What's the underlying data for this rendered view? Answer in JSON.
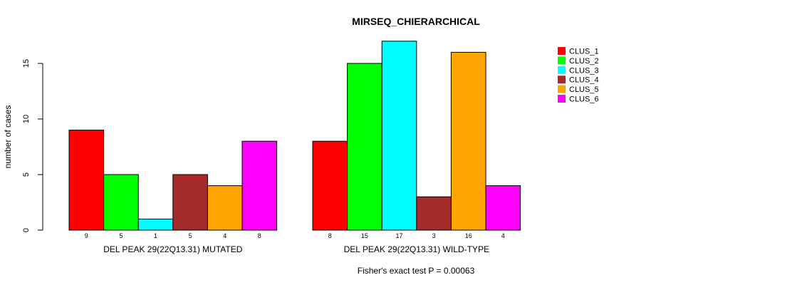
{
  "chart_data": {
    "type": "bar",
    "title": "MIRSEQ_CHIERARCHICAL",
    "ylabel": "number of cases",
    "ylim": [
      0,
      17.5
    ],
    "yticks": [
      0,
      5,
      10,
      15
    ],
    "groups": [
      "DEL PEAK 29(22Q13.31) MUTATED",
      "DEL PEAK 29(22Q13.31) WILD-TYPE"
    ],
    "series": [
      {
        "name": "CLUS_1",
        "color": "#ff0000",
        "values": [
          9,
          8
        ]
      },
      {
        "name": "CLUS_2",
        "color": "#00ff00",
        "values": [
          5,
          15
        ]
      },
      {
        "name": "CLUS_3",
        "color": "#00ffff",
        "values": [
          1,
          17
        ]
      },
      {
        "name": "CLUS_4",
        "color": "#a52a2a",
        "values": [
          5,
          3
        ]
      },
      {
        "name": "CLUS_5",
        "color": "#ffa500",
        "values": [
          4,
          16
        ]
      },
      {
        "name": "CLUS_6",
        "color": "#ff00ff",
        "values": [
          8,
          4
        ]
      }
    ],
    "legend_position": "top-right",
    "grid": false,
    "footnote": "Fisher's exact test P = 0.00063"
  }
}
